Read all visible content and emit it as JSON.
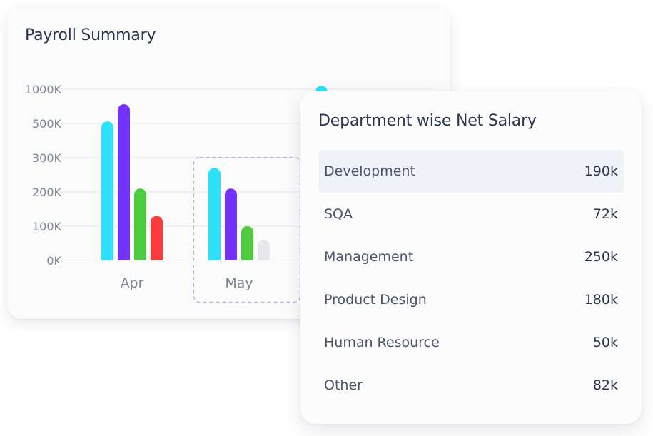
{
  "payroll": {
    "title": "Payroll Summary"
  },
  "chart_data": {
    "type": "bar",
    "categories": [
      "Apr",
      "May",
      ""
    ],
    "y_ticks": [
      "1000K",
      "500K",
      "300K",
      "200K",
      "100K",
      "0K"
    ],
    "ylim": [
      0,
      1000
    ],
    "grid": true,
    "selected_category": "May",
    "series": [
      {
        "color": "#2fe0fa",
        "values": [
          530,
          270,
          1050
        ]
      },
      {
        "color": "#7433fb",
        "values": [
          780,
          210,
          null
        ]
      },
      {
        "color": "#4ecb3e",
        "values": [
          210,
          100,
          null
        ]
      },
      {
        "color": "#fb3b3b",
        "values": [
          130,
          60,
          null
        ]
      }
    ],
    "muted_color": "#e6e8ec",
    "muted_bars": [
      {
        "category": 1,
        "series": 3
      }
    ]
  },
  "department": {
    "title": "Department wise Net Salary",
    "rows": [
      {
        "name": "Development",
        "value": "190k"
      },
      {
        "name": "SQA",
        "value": "72k"
      },
      {
        "name": "Management",
        "value": "250k"
      },
      {
        "name": "Product Design",
        "value": "180k"
      },
      {
        "name": "Human Resource",
        "value": "50k"
      },
      {
        "name": "Other",
        "value": "82k"
      }
    ],
    "highlighted_row": 0
  },
  "colors": {
    "title_text": "#2b3550",
    "label_text": "#4a546b",
    "axis_text": "#7d8597",
    "highlight_row_bg": "#f0f2f9",
    "selection_border": "#a9b8dc"
  }
}
